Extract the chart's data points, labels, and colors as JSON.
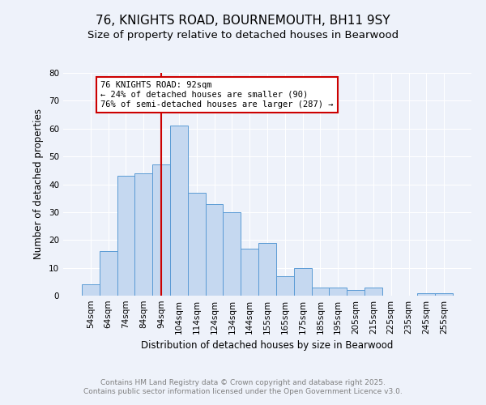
{
  "title": "76, KNIGHTS ROAD, BOURNEMOUTH, BH11 9SY",
  "subtitle": "Size of property relative to detached houses in Bearwood",
  "xlabel": "Distribution of detached houses by size in Bearwood",
  "ylabel": "Number of detached properties",
  "categories": [
    "54sqm",
    "64sqm",
    "74sqm",
    "84sqm",
    "94sqm",
    "104sqm",
    "114sqm",
    "124sqm",
    "134sqm",
    "144sqm",
    "155sqm",
    "165sqm",
    "175sqm",
    "185sqm",
    "195sqm",
    "205sqm",
    "215sqm",
    "225sqm",
    "235sqm",
    "245sqm",
    "255sqm"
  ],
  "values": [
    4,
    16,
    43,
    44,
    47,
    61,
    37,
    33,
    30,
    17,
    19,
    7,
    10,
    3,
    3,
    2,
    3,
    0,
    0,
    1,
    1
  ],
  "bar_color": "#c5d8f0",
  "bar_edge_color": "#5b9bd5",
  "bar_width": 1.0,
  "vline_x": 4,
  "vline_color": "#cc0000",
  "ylim": [
    0,
    80
  ],
  "yticks": [
    0,
    10,
    20,
    30,
    40,
    50,
    60,
    70,
    80
  ],
  "annotation_text": "76 KNIGHTS ROAD: 92sqm\n← 24% of detached houses are smaller (90)\n76% of semi-detached houses are larger (287) →",
  "annotation_box_color": "#ffffff",
  "annotation_box_edge": "#cc0000",
  "footer_line1": "Contains HM Land Registry data © Crown copyright and database right 2025.",
  "footer_line2": "Contains public sector information licensed under the Open Government Licence v3.0.",
  "background_color": "#eef2fa",
  "grid_color": "#ffffff",
  "title_fontsize": 11,
  "subtitle_fontsize": 9.5,
  "axis_label_fontsize": 8.5,
  "tick_fontsize": 7.5,
  "annotation_fontsize": 7.5,
  "footer_fontsize": 6.5
}
